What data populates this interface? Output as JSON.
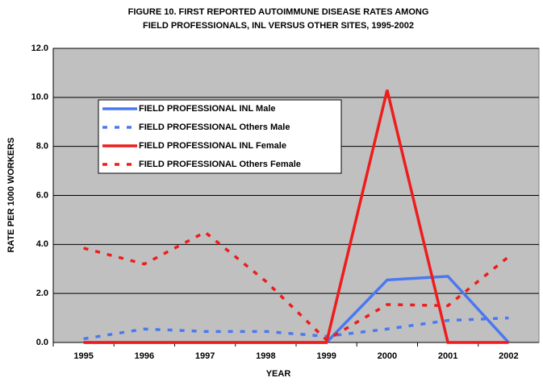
{
  "chart_data": {
    "type": "line",
    "title": [
      "FIGURE 10.  FIRST REPORTED AUTOIMMUNE DISEASE RATES AMONG",
      "FIELD PROFESSIONALS, INL VERSUS OTHER SITES, 1995-2002"
    ],
    "x_label": "YEAR",
    "y_label": "RATE PER 1000 WORKERS",
    "categories": [
      "1995",
      "1996",
      "1997",
      "1998",
      "1999",
      "2000",
      "2001",
      "2002"
    ],
    "series": [
      {
        "name": "FIELD  PROFESSIONAL INL Male",
        "color": "#4a78f0",
        "dashed": false,
        "values": [
          0,
          0,
          0,
          0,
          0,
          2.55,
          2.7,
          0
        ]
      },
      {
        "name": "FIELD  PROFESSIONAL Others Male",
        "color": "#4a78f0",
        "dashed": true,
        "values": [
          0.15,
          0.55,
          0.45,
          0.45,
          0.25,
          0.55,
          0.9,
          1.0
        ]
      },
      {
        "name": "FIELD  PROFESSIONAL INL Female",
        "color": "#ee1c1c",
        "dashed": false,
        "values": [
          0,
          0,
          0,
          0,
          0,
          10.3,
          0,
          0
        ]
      },
      {
        "name": "FIELD  PROFESSIONAL Others Female",
        "color": "#ee1c1c",
        "dashed": true,
        "values": [
          3.85,
          3.2,
          4.5,
          2.5,
          0.1,
          1.55,
          1.5,
          3.5
        ]
      }
    ],
    "ylim": [
      0,
      12
    ],
    "yticks": [
      {
        "value": 0,
        "label": "0.0"
      },
      {
        "value": 2,
        "label": "2.0"
      },
      {
        "value": 4,
        "label": "4.0"
      },
      {
        "value": 6,
        "label": "6.0"
      },
      {
        "value": 8,
        "label": "8.0"
      },
      {
        "value": 10,
        "label": "10.0"
      },
      {
        "value": 12,
        "label": "12.0"
      }
    ],
    "grid": true,
    "plot_background": "#c0c0c0"
  }
}
